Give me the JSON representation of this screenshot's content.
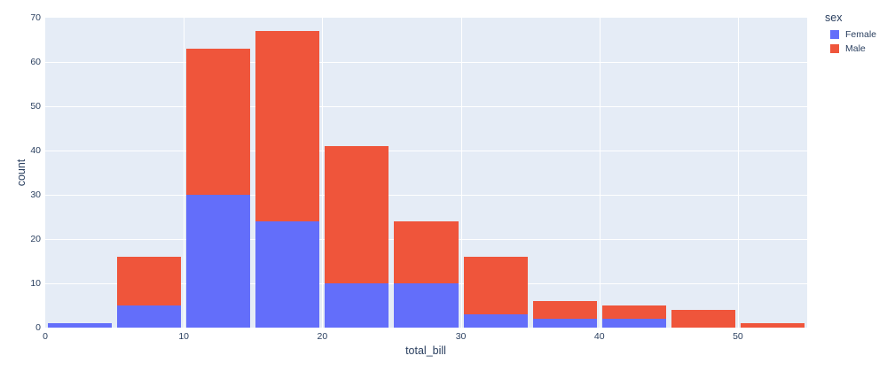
{
  "chart_data": {
    "type": "bar",
    "subtype": "stacked-histogram",
    "title": "",
    "xlabel": "total_bill",
    "ylabel": "count",
    "bin_width": 5,
    "bin_starts": [
      0,
      5,
      10,
      15,
      20,
      25,
      30,
      35,
      40,
      45,
      50
    ],
    "series": [
      {
        "name": "Female",
        "color": "#636EFA",
        "values": [
          1,
          5,
          30,
          24,
          10,
          10,
          3,
          2,
          2,
          0,
          0
        ]
      },
      {
        "name": "Male",
        "color": "#EF553B",
        "values": [
          0,
          11,
          33,
          43,
          31,
          14,
          13,
          4,
          3,
          4,
          1
        ]
      }
    ],
    "xlim": [
      0,
      55
    ],
    "ylim": [
      0,
      70
    ],
    "xticks": [
      0,
      10,
      20,
      30,
      40,
      50
    ],
    "yticks": [
      0,
      10,
      20,
      30,
      40,
      50,
      60,
      70
    ],
    "grid": true,
    "legend": {
      "title": "sex",
      "position": "top-right-outside",
      "entries": [
        "Female",
        "Male"
      ]
    },
    "colors": {
      "plot_background": "#E5ECF6",
      "paper_background": "#FFFFFF",
      "gridline": "#FFFFFF",
      "text": "#2A3F5F",
      "female": "#636EFA",
      "male": "#EF553B"
    }
  }
}
